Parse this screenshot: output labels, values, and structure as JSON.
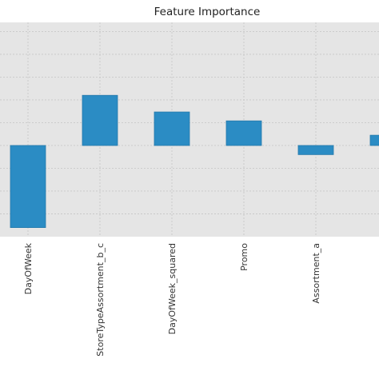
{
  "chart_data": {
    "type": "bar",
    "title": "Feature Importance",
    "categories": [
      "DayOfWeek",
      "StoreTypeAssortment_b_c",
      "DayOfWeek_squared",
      "Promo",
      "Assortment_a",
      ""
    ],
    "values": [
      -0.036,
      0.022,
      0.0147,
      0.0108,
      -0.004,
      0.0045
    ],
    "ylim": [
      -0.04,
      0.054
    ],
    "yticks": [
      -0.03,
      -0.02,
      -0.01,
      0.0,
      0.01,
      0.02,
      0.03,
      0.04,
      0.05
    ],
    "grid": true,
    "bar_color": "#2b8cc4",
    "background_color": "#e5e5e5"
  }
}
